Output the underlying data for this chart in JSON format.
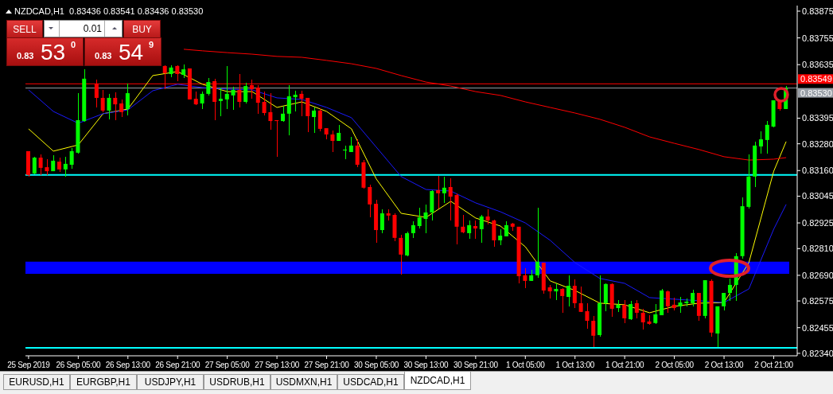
{
  "chart_data": {
    "type": "candlestick",
    "title": "NZDCAD,H1  0.83436 0.83541 0.83436 0.83530",
    "categories": [
      "25 Sep 2019",
      null,
      null,
      null,
      null,
      null,
      null,
      null,
      "26 Sep 05:00",
      null,
      null,
      null,
      null,
      null,
      null,
      null,
      "26 Sep 13:00",
      null,
      null,
      null,
      null,
      null,
      null,
      null,
      "26 Sep 21:00",
      null,
      null,
      null,
      null,
      null,
      null,
      null,
      "27 Sep 05:00",
      null,
      null,
      null,
      null,
      null,
      null,
      null,
      "27 Sep 13:00",
      null,
      null,
      null,
      null,
      null,
      null,
      null,
      "27 Sep 21:00",
      null,
      null,
      null,
      null,
      null,
      null,
      null,
      "30 Sep 05:00",
      null,
      null,
      null,
      null,
      null,
      null,
      null,
      "30 Sep 13:00",
      null,
      null,
      null,
      null,
      null,
      null,
      null,
      "30 Sep 21:00",
      null,
      null,
      null,
      null,
      null,
      null,
      null,
      "1 Oct 05:00",
      null,
      null,
      null,
      null,
      null,
      null,
      null,
      "1 Oct 13:00",
      null,
      null,
      null,
      null,
      null,
      null,
      null,
      "1 Oct 21:00",
      null,
      null,
      null,
      null,
      null,
      null,
      null,
      "2 Oct 05:00",
      null,
      null,
      null,
      null,
      null,
      null,
      null,
      "2 Oct 13:00",
      null,
      null,
      null,
      null,
      null,
      null,
      null,
      "2 Oct 21:00",
      null,
      null
    ],
    "ohlc": [
      [
        0.83247,
        0.83247,
        0.83133,
        0.8314
      ],
      [
        0.83147,
        0.83222,
        0.83143,
        0.83218
      ],
      [
        0.83218,
        0.83232,
        0.8314,
        0.83172
      ],
      [
        0.83175,
        0.83211,
        0.8314,
        0.83157
      ],
      [
        0.83157,
        0.83229,
        0.83157,
        0.83204
      ],
      [
        0.832,
        0.83218,
        0.83154,
        0.83165
      ],
      [
        0.83165,
        0.83222,
        0.83133,
        0.8319
      ],
      [
        0.83186,
        0.83261,
        0.83168,
        0.83247
      ],
      [
        0.8324,
        0.83507,
        0.83236,
        0.83386
      ],
      [
        0.83382,
        0.83614,
        0.83379,
        0.83572
      ],
      null,
      [
        0.8355,
        0.83568,
        0.83443,
        0.83486
      ],
      [
        0.83486,
        0.83522,
        0.83422,
        0.83429
      ],
      [
        0.83429,
        0.83504,
        0.8339,
        0.83486
      ],
      [
        0.83486,
        0.83511,
        0.83386,
        0.83457
      ],
      [
        0.83461,
        0.83479,
        0.834,
        0.83422
      ],
      [
        0.83436,
        0.8355,
        0.83407,
        0.83507
      ],
      null,
      null,
      null,
      null,
      null,
      [
        0.83629,
        0.83632,
        0.83525,
        0.83597
      ],
      [
        0.83593,
        0.83632,
        0.83579,
        0.83622
      ],
      [
        0.83629,
        0.83632,
        0.83561,
        0.83593
      ],
      [
        0.83589,
        0.83636,
        0.83575,
        0.83614
      ],
      [
        0.83618,
        0.83618,
        0.83479,
        0.83479
      ],
      [
        0.83482,
        0.83514,
        0.83454,
        0.83457
      ],
      [
        0.83461,
        0.83514,
        0.83436,
        0.83504
      ],
      [
        0.83504,
        0.83575,
        0.83497,
        0.83557
      ],
      [
        0.83561,
        0.83572,
        0.83386,
        0.83468
      ],
      [
        0.83472,
        0.83532,
        0.83404,
        0.83482
      ],
      [
        0.83479,
        0.83629,
        0.83436,
        0.83504
      ],
      [
        0.83497,
        0.83536,
        0.83432,
        0.83522
      ],
      [
        0.83522,
        0.83593,
        0.83443,
        0.83468
      ],
      [
        0.83468,
        0.83554,
        0.83461,
        0.83539
      ],
      [
        0.83543,
        0.83568,
        0.83482,
        0.83525
      ],
      [
        0.83532,
        0.83543,
        0.83415,
        0.83464
      ],
      [
        0.83468,
        0.83514,
        0.83407,
        0.83418
      ],
      [
        0.83422,
        0.83507,
        0.83343,
        0.83382
      ],
      [
        0.83386,
        0.83386,
        0.83222,
        0.83382
      ],
      [
        0.83382,
        0.8345,
        0.83379,
        0.83415
      ],
      [
        0.83415,
        0.83543,
        0.83318,
        0.83493
      ],
      [
        0.83489,
        0.83518,
        0.83425,
        0.835
      ],
      [
        0.83504,
        0.83518,
        0.83404,
        0.83482
      ],
      [
        0.83486,
        0.83486,
        0.83332,
        0.83404
      ],
      [
        0.834,
        0.83443,
        0.83329,
        0.83429
      ],
      [
        0.83429,
        0.8344,
        0.83336,
        0.83347
      ],
      [
        0.8335,
        0.8335,
        0.833,
        0.83322
      ],
      [
        0.83322,
        0.8334,
        0.83243,
        0.83293
      ],
      [
        0.83293,
        0.83365,
        0.83293,
        0.83329
      ],
      [
        0.8325,
        0.83272,
        0.83211,
        0.83254
      ],
      [
        0.83243,
        0.83311,
        0.83243,
        0.83272
      ],
      [
        0.83272,
        0.833,
        0.83175,
        0.83186
      ],
      [
        0.83197,
        0.83207,
        0.83079,
        0.83083
      ],
      [
        0.83086,
        0.83097,
        0.8295,
        0.83008
      ],
      [
        0.83011,
        0.83029,
        0.82836,
        0.82893
      ],
      [
        0.82893,
        0.82986,
        0.82879,
        0.82968
      ],
      [
        0.82968,
        0.82986,
        0.82936,
        0.82958
      ],
      [
        0.82961,
        0.82968,
        0.82843,
        0.82858
      ],
      [
        0.82858,
        0.82872,
        0.82693,
        0.82783
      ],
      [
        0.82779,
        0.82886,
        0.82776,
        0.82879
      ],
      [
        0.82879,
        0.82933,
        0.82858,
        0.82915
      ],
      [
        0.82911,
        0.82993,
        0.829,
        0.8295
      ],
      [
        0.82943,
        0.83008,
        0.82879,
        0.82972
      ],
      [
        0.82972,
        0.83072,
        0.82936,
        0.83068
      ],
      [
        0.83072,
        0.83136,
        0.8299,
        0.83058
      ],
      [
        0.83058,
        0.83133,
        0.83015,
        0.83083
      ],
      [
        0.83086,
        0.83125,
        0.82936,
        0.83043
      ],
      [
        0.8305,
        0.83058,
        0.82829,
        0.82908
      ],
      [
        0.82908,
        0.82961,
        0.82879,
        0.82883
      ],
      [
        0.82879,
        0.82936,
        0.82854,
        0.82915
      ],
      [
        0.82911,
        0.82936,
        0.82854,
        0.829
      ],
      [
        0.82897,
        0.82961,
        0.82836,
        0.82954
      ],
      [
        0.82954,
        0.82986,
        0.82918,
        0.82936
      ],
      [
        0.82936,
        0.8294,
        0.82818,
        0.82847
      ],
      [
        0.82847,
        0.82897,
        0.82825,
        0.82868
      ],
      [
        0.82865,
        0.82933,
        0.82865,
        0.82915
      ],
      [
        0.82922,
        0.82925,
        0.8289,
        0.82908
      ],
      [
        0.82908,
        0.82908,
        0.82654,
        0.82686
      ],
      [
        0.8269,
        0.82722,
        0.82633,
        0.82665
      ],
      [
        0.82665,
        0.82715,
        0.82665,
        0.8269
      ],
      [
        0.8269,
        0.82993,
        0.82679,
        0.82751
      ],
      [
        0.82747,
        0.82747,
        0.82608,
        0.82622
      ],
      [
        0.82636,
        0.82647,
        0.82586,
        0.82618
      ],
      [
        0.82618,
        0.82654,
        0.82579,
        0.82629
      ],
      [
        0.82629,
        0.82633,
        0.82522,
        0.82597
      ],
      [
        0.82593,
        0.8269,
        0.82551,
        0.82643
      ],
      [
        0.82643,
        0.82672,
        0.82543,
        0.82565
      ],
      [
        0.82565,
        0.8264,
        0.82526,
        0.82526
      ],
      [
        0.82529,
        0.82565,
        0.82451,
        0.82486
      ],
      [
        0.82486,
        0.82508,
        0.82369,
        0.82419
      ],
      [
        0.82422,
        0.8269,
        0.82415,
        0.82565
      ],
      [
        0.82565,
        0.82654,
        0.82529,
        0.82651
      ],
      [
        0.82651,
        0.82654,
        0.82504,
        0.8254
      ],
      [
        0.82543,
        0.82579,
        0.82526,
        0.82558
      ],
      [
        0.82558,
        0.82579,
        0.82476,
        0.82497
      ],
      [
        0.82493,
        0.82576,
        0.8249,
        0.82561
      ],
      [
        0.82565,
        0.82579,
        0.82497,
        0.82522
      ],
      [
        0.82522,
        0.8254,
        0.82447,
        0.82479
      ],
      [
        0.82483,
        0.82511,
        0.82468,
        0.82472
      ],
      [
        0.82476,
        0.82561,
        0.82472,
        0.82515
      ],
      [
        0.82511,
        0.82629,
        0.82511,
        0.82622
      ],
      [
        0.82618,
        0.82622,
        0.82522,
        0.82551
      ],
      [
        0.82558,
        0.8259,
        0.82533,
        0.82543
      ],
      [
        0.82551,
        0.82593,
        0.82522,
        0.82568
      ],
      [
        0.82565,
        0.82586,
        0.82551,
        0.82572
      ],
      [
        0.82565,
        0.82626,
        0.82551,
        0.82611
      ],
      [
        0.82611,
        0.82611,
        0.82486,
        0.82508
      ],
      [
        0.82508,
        0.82668,
        0.82497,
        0.82668
      ],
      [
        0.82665,
        0.82672,
        0.82415,
        0.82433
      ],
      [
        0.82429,
        0.82551,
        0.82369,
        0.82551
      ],
      [
        0.82551,
        0.82611,
        0.82533,
        0.82611
      ],
      [
        0.82611,
        0.82676,
        0.82576,
        0.82647
      ],
      [
        0.82647,
        0.8279,
        0.82576,
        0.82776
      ],
      [
        0.82776,
        0.8304,
        0.82765,
        0.83
      ],
      [
        0.82997,
        0.83232,
        0.8299,
        0.83133
      ],
      [
        0.83133,
        0.8329,
        0.83086,
        0.83272
      ],
      [
        0.83268,
        0.83336,
        0.83236,
        0.833
      ],
      [
        0.83297,
        0.83382,
        0.83236,
        0.83365
      ],
      [
        0.83357,
        0.83475,
        0.83354,
        0.83475
      ],
      [
        0.83472,
        0.83472,
        0.83429,
        0.83436
      ],
      [
        0.83436,
        0.83541,
        0.83436,
        0.8353
      ]
    ],
    "series": [
      {
        "type": "line",
        "color": "#ffff00",
        "values": [
          0.83347,
          null,
          null,
          null,
          0.83247,
          null,
          null,
          null,
          0.83275,
          null,
          null,
          null,
          0.83415,
          null,
          null,
          null,
          0.83436,
          null,
          null,
          null,
          0.83586,
          null,
          null,
          null,
          0.83604,
          null,
          null,
          null,
          0.83547,
          null,
          null,
          null,
          0.83514,
          null,
          null,
          null,
          0.83514,
          null,
          null,
          null,
          0.83443,
          null,
          null,
          null,
          0.83468,
          null,
          null,
          null,
          0.83425,
          null,
          null,
          null,
          0.83347,
          null,
          null,
          null,
          0.83122,
          null,
          null,
          null,
          0.82968,
          null,
          null,
          null,
          0.8295,
          null,
          null,
          null,
          0.83022,
          null,
          null,
          null,
          0.82947,
          null,
          null,
          null,
          0.82911,
          null,
          null,
          null,
          0.82818,
          null,
          null,
          null,
          0.82665,
          null,
          null,
          null,
          0.82622,
          null,
          null,
          null,
          0.82565,
          null,
          null,
          null,
          0.82558,
          null,
          null,
          null,
          0.82522,
          null,
          null,
          null,
          0.82551,
          null,
          null,
          null,
          0.82565,
          null,
          null,
          null,
          0.82568,
          null,
          null,
          null,
          0.82747,
          null,
          null,
          null,
          0.83157,
          null,
          0.8329
        ]
      },
      {
        "type": "line",
        "color": "#1a1aff",
        "values": [
          0.83522,
          null,
          null,
          null,
          0.83425,
          null,
          null,
          null,
          0.83372,
          null,
          null,
          null,
          0.83415,
          null,
          null,
          null,
          0.83432,
          null,
          null,
          null,
          0.83518,
          null,
          null,
          null,
          0.83547,
          null,
          null,
          null,
          0.83532,
          null,
          null,
          null,
          0.83525,
          null,
          null,
          null,
          0.83522,
          null,
          null,
          null,
          0.83486,
          null,
          null,
          null,
          0.83479,
          null,
          null,
          null,
          0.83443,
          null,
          null,
          null,
          0.83397,
          null,
          null,
          null,
          0.83265,
          null,
          null,
          null,
          0.83133,
          null,
          null,
          null,
          0.83075,
          null,
          null,
          null,
          0.83068,
          null,
          null,
          null,
          0.83015,
          null,
          null,
          null,
          0.82975,
          null,
          null,
          null,
          0.82925,
          null,
          null,
          null,
          0.82847,
          null,
          null,
          null,
          0.82747,
          null,
          null,
          null,
          0.82676,
          null,
          null,
          null,
          0.82654,
          null,
          null,
          null,
          0.8259,
          null,
          null,
          null,
          0.82583,
          null,
          null,
          null,
          0.82576,
          null,
          null,
          null,
          0.82568,
          null,
          null,
          null,
          0.82629,
          null,
          null,
          null,
          0.82897,
          null,
          0.83008
        ]
      },
      {
        "type": "line",
        "color": "#ff0000",
        "values": [
          null,
          null,
          null,
          null,
          null,
          null,
          null,
          null,
          null,
          null,
          null,
          null,
          null,
          null,
          null,
          null,
          null,
          null,
          null,
          null,
          null,
          null,
          null,
          null,
          null,
          0.83704,
          null,
          null,
          0.83697,
          null,
          null,
          null,
          0.83689,
          null,
          null,
          null,
          0.83682,
          null,
          null,
          null,
          0.83672,
          null,
          null,
          null,
          0.83668,
          null,
          null,
          null,
          0.83654,
          null,
          null,
          null,
          0.83639,
          null,
          null,
          null,
          0.83618,
          null,
          null,
          null,
          0.83586,
          null,
          null,
          null,
          0.83557,
          null,
          null,
          null,
          0.83539,
          null,
          null,
          null,
          0.83514,
          null,
          null,
          null,
          0.83497,
          null,
          null,
          null,
          0.83468,
          null,
          null,
          null,
          0.83443,
          null,
          null,
          null,
          0.83418,
          null,
          null,
          null,
          0.8339,
          null,
          null,
          null,
          0.83354,
          null,
          null,
          null,
          0.83311,
          null,
          null,
          null,
          0.83282,
          null,
          null,
          null,
          0.83254,
          null,
          null,
          null,
          0.83222,
          null,
          null,
          null,
          0.83207,
          null,
          null,
          null,
          0.83211,
          null,
          0.83218
        ]
      }
    ],
    "ylim": [
      0.82329,
      0.839
    ],
    "yticks": [
      0.83875,
      0.83755,
      0.83635,
      0.83395,
      {
        "value": 0.8328,
        "label": "0.83280"
      },
      {
        "value": 0.8316,
        "label": "0.83160"
      },
      0.83045,
      0.82925,
      {
        "value": 0.8281,
        "label": "0.82810"
      },
      {
        "value": 0.8269,
        "label": "0.82690"
      },
      0.82575,
      0.82455,
      {
        "value": 0.8234,
        "label": "0.82340"
      }
    ],
    "ref_lines": [
      {
        "axis": "y",
        "value": 0.83549,
        "label": "0.83549",
        "color": "#ff0000"
      },
      {
        "axis": "y",
        "value": 0.8353,
        "label": "0.83530",
        "color": "#9aa0a8"
      },
      {
        "axis": "y",
        "value": 0.8314,
        "color": "#00ffff"
      },
      {
        "axis": "y",
        "value": 0.82365,
        "color": "#00ffff"
      }
    ],
    "bands": [
      {
        "axis": "y",
        "from": 0.82697,
        "to": 0.82751,
        "color": "#0000ff"
      }
    ],
    "annotations": [
      "SELL",
      "BUY",
      "0.01",
      "0.83",
      "53",
      "0",
      "0.83",
      "54",
      "9",
      "EURUSD,H1",
      "EURGBP,H1",
      "USDJPY,H1",
      "USDRUB,H1",
      "USDMXN,H1",
      "USDCAD,H1",
      "NZDCAD,H1"
    ],
    "grid": false,
    "legend": false
  }
}
